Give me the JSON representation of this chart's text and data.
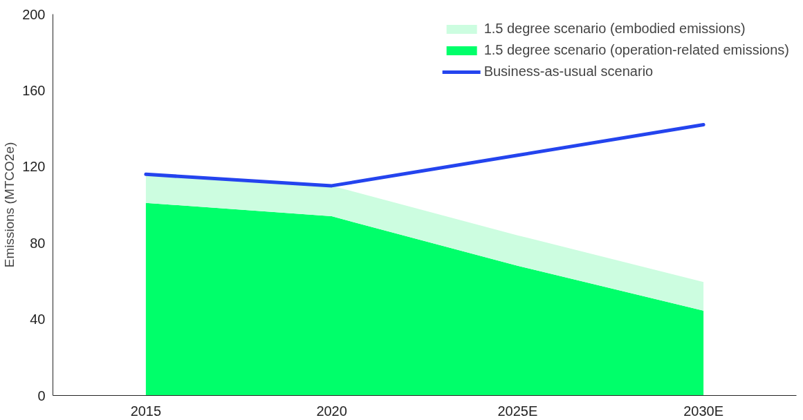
{
  "chart_data": {
    "type": "area",
    "stacked": true,
    "ylabel": "Emissions (MTCO2e)",
    "categories": [
      "2015",
      "2020",
      "2025E",
      "2030E"
    ],
    "series": [
      {
        "name": "1.5 degree scenario (operation-related emissions)",
        "color": "#00ff6a",
        "values": [
          101,
          94,
          68,
          44.5
        ]
      },
      {
        "name": "1.5 degree scenario (embodied emissions)",
        "color": "#ccfde0",
        "values": [
          15,
          16,
          16,
          15
        ]
      },
      {
        "name": "Business-as-usual scenario",
        "type": "line",
        "color": "#2444ee",
        "values": [
          116,
          110,
          126,
          142
        ]
      }
    ],
    "ylim": [
      0,
      200
    ],
    "yticks": [
      0,
      40,
      80,
      120,
      160,
      200
    ],
    "grid": false,
    "legend": "top right"
  }
}
